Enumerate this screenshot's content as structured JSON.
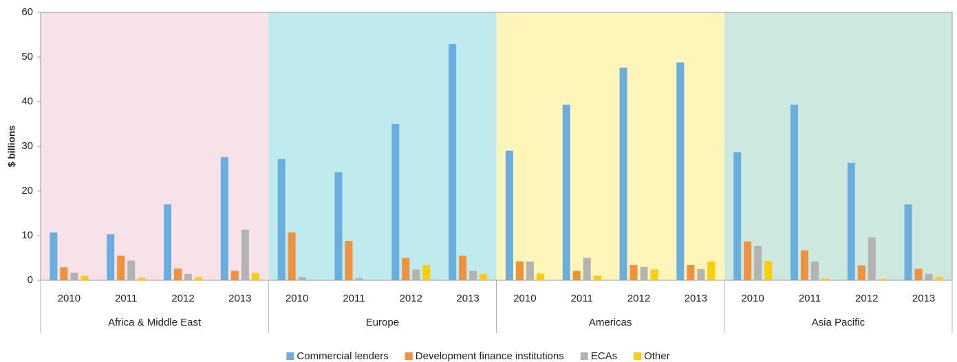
{
  "chart_data": {
    "type": "bar",
    "y_label": "$ billions",
    "groups": [
      "Africa & Middle East",
      "Europe",
      "Americas",
      "Asia Pacific"
    ],
    "group_colors": [
      "#f7e2ea",
      "#c0ebee",
      "#fdf5ba",
      "#cde9df"
    ],
    "categories": [
      "2010",
      "2011",
      "2012",
      "2013",
      "2010",
      "2011",
      "2012",
      "2013",
      "2010",
      "2011",
      "2012",
      "2013",
      "2010",
      "2011",
      "2012",
      "2013"
    ],
    "series": [
      {
        "name": "Commercial lenders",
        "color": "#6aaee0",
        "values": [
          10.7,
          10.3,
          17,
          27.6,
          27.2,
          24.2,
          35,
          52.9,
          29,
          39.3,
          47.6,
          48.8,
          28.7,
          39.3,
          26.3,
          17
        ]
      },
      {
        "name": "Development finance institutions",
        "color": "#f0913e",
        "values": [
          2.9,
          5.5,
          2.6,
          2.1,
          10.7,
          8.8,
          5,
          5.5,
          4.2,
          2.1,
          3.4,
          3.4,
          8.7,
          6.7,
          3.3,
          2.6
        ]
      },
      {
        "name": "ECAs",
        "color": "#b3b3b3",
        "values": [
          1.7,
          4.4,
          1.4,
          11.3,
          0.7,
          0.5,
          2.4,
          2.1,
          4.2,
          5,
          3,
          2.5,
          7.7,
          4.2,
          9.6,
          1.4
        ]
      },
      {
        "name": "Other",
        "color": "#fccd0a",
        "values": [
          1,
          0.6,
          0.7,
          1.6,
          0,
          0,
          3.4,
          1.4,
          1.5,
          1,
          2.4,
          4.2,
          4.3,
          0.4,
          0.3,
          0.7
        ]
      }
    ],
    "ylim": [
      0,
      60
    ],
    "yticks": [
      0,
      10,
      20,
      30,
      40,
      50,
      60
    ],
    "grid": false,
    "legend": "bottom"
  }
}
